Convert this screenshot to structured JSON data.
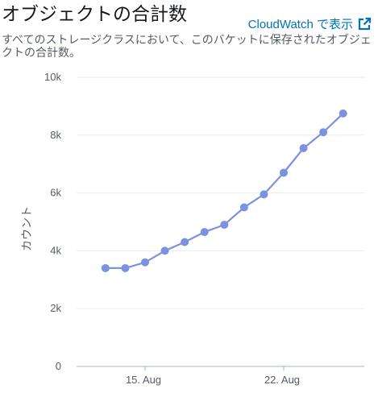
{
  "widget": {
    "title": "オブジェクトの合計数",
    "link_label": "CloudWatch で表示",
    "link_icon": "external-link-icon",
    "description": "すべてのストレージクラスにおいて、このバケットに保存されたオブジェクトの合計数。",
    "accent_color": "#0073bb",
    "series_color": "#7b92e0"
  },
  "chart_data": {
    "type": "line",
    "title": "オブジェクトの合計数",
    "ylabel": "カウント",
    "xlabel": "",
    "ylim": [
      0,
      10000
    ],
    "yticks": [
      0,
      2000,
      4000,
      6000,
      8000,
      10000
    ],
    "ytick_labels": [
      "0",
      "2k",
      "4k",
      "6k",
      "8k",
      "10k"
    ],
    "xticks": [
      "2023-08-15",
      "2023-08-22"
    ],
    "xtick_labels": [
      "15. Aug",
      "22. Aug"
    ],
    "grid": true,
    "legend": "none",
    "x": [
      "2023-08-13",
      "2023-08-14",
      "2023-08-15",
      "2023-08-16",
      "2023-08-17",
      "2023-08-18",
      "2023-08-19",
      "2023-08-20",
      "2023-08-21",
      "2023-08-22",
      "2023-08-23",
      "2023-08-24",
      "2023-08-25"
    ],
    "values": [
      3400,
      3400,
      3600,
      4000,
      4300,
      4650,
      4900,
      5500,
      5950,
      6700,
      7550,
      8100,
      8750
    ]
  }
}
